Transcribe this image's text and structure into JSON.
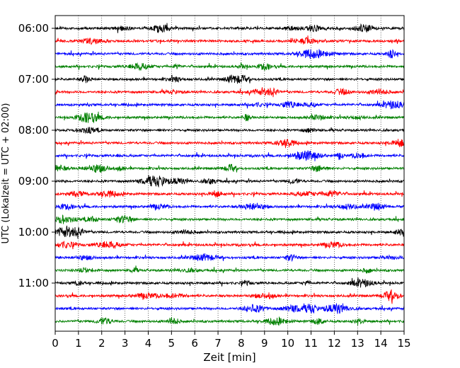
{
  "chart_data": {
    "type": "line",
    "title": "",
    "xlabel": "Zeit  [min]",
    "ylabel": "UTC (Lokalzeit = UTC + 02:00)",
    "xlim": [
      0,
      15
    ],
    "x_ticks": [
      "0",
      "1",
      "2",
      "3",
      "4",
      "5",
      "6",
      "7",
      "8",
      "9",
      "10",
      "11",
      "12",
      "13",
      "14",
      "15"
    ],
    "y_ticks": [
      "06:00",
      "07:00",
      "08:00",
      "09:00",
      "10:00",
      "11:00"
    ],
    "grid": "vertical dotted lines at each minute",
    "legend": "none",
    "trace_interval_min": 15,
    "colors": [
      "#000000",
      "#ff0000",
      "#0000ff",
      "#008000"
    ],
    "traces": [
      {
        "start": "06:00",
        "color": "#000000"
      },
      {
        "start": "06:15",
        "color": "#ff0000"
      },
      {
        "start": "06:30",
        "color": "#0000ff"
      },
      {
        "start": "06:45",
        "color": "#008000"
      },
      {
        "start": "07:00",
        "color": "#000000"
      },
      {
        "start": "07:15",
        "color": "#ff0000"
      },
      {
        "start": "07:30",
        "color": "#0000ff"
      },
      {
        "start": "07:45",
        "color": "#008000"
      },
      {
        "start": "08:00",
        "color": "#000000"
      },
      {
        "start": "08:15",
        "color": "#ff0000"
      },
      {
        "start": "08:30",
        "color": "#0000ff"
      },
      {
        "start": "08:45",
        "color": "#008000"
      },
      {
        "start": "09:00",
        "color": "#000000"
      },
      {
        "start": "09:15",
        "color": "#ff0000"
      },
      {
        "start": "09:30",
        "color": "#0000ff"
      },
      {
        "start": "09:45",
        "color": "#008000"
      },
      {
        "start": "10:00",
        "color": "#000000"
      },
      {
        "start": "10:15",
        "color": "#ff0000"
      },
      {
        "start": "10:30",
        "color": "#0000ff"
      },
      {
        "start": "10:45",
        "color": "#008000"
      },
      {
        "start": "11:00",
        "color": "#000000"
      },
      {
        "start": "11:15",
        "color": "#ff0000"
      },
      {
        "start": "11:30",
        "color": "#0000ff"
      },
      {
        "start": "11:45",
        "color": "#008000"
      }
    ]
  }
}
